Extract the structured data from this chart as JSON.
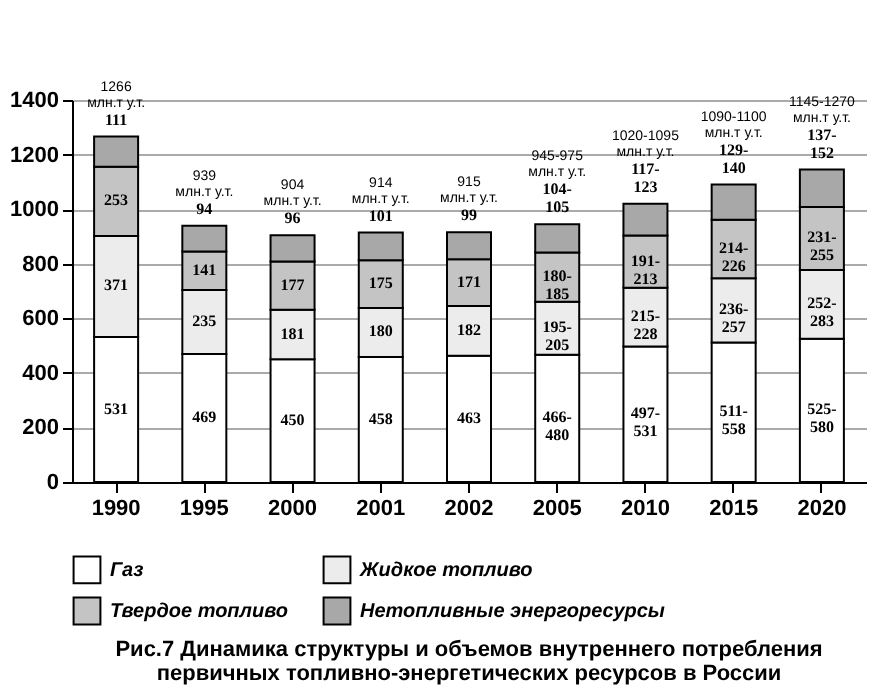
{
  "chart_data": {
    "type": "bar",
    "stacked": true,
    "title": "Рис.7 Динамика структуры и объемов внутреннего потребления первичных топливно-энергетических ресурсов в России",
    "categories": [
      "1990",
      "1995",
      "2000",
      "2001",
      "2002",
      "2005",
      "2010",
      "2015",
      "2020"
    ],
    "series": [
      {
        "name": "Газ",
        "color": "#ffffff",
        "values": [
          531,
          469,
          450,
          458,
          463,
          466,
          497,
          511,
          525
        ],
        "value_labels": [
          "531",
          "469",
          "450",
          "458",
          "463",
          "466-480",
          "497-531",
          "511-558",
          "525-580"
        ]
      },
      {
        "name": "Жидкое топливо",
        "color": "#ececec",
        "values": [
          371,
          235,
          181,
          180,
          182,
          195,
          215,
          236,
          252
        ],
        "value_labels": [
          "371",
          "235",
          "181",
          "180",
          "182",
          "195-205",
          "215-228",
          "236-257",
          "252-283"
        ]
      },
      {
        "name": "Твердое топливо",
        "color": "#c4c4c4",
        "values": [
          253,
          141,
          177,
          175,
          171,
          180,
          191,
          214,
          231
        ],
        "value_labels": [
          "253",
          "141",
          "177",
          "175",
          "171",
          "180-185",
          "191-213",
          "214-226",
          "231-255"
        ]
      },
      {
        "name": "Нетопливные энергоресурсы",
        "color": "#a8a8a8",
        "values": [
          111,
          94,
          96,
          101,
          99,
          104,
          117,
          129,
          137
        ],
        "value_labels": [
          "111",
          "94",
          "96",
          "101",
          "99",
          "104-105",
          "117-123",
          "129-140",
          "137-152"
        ]
      }
    ],
    "totals": [
      "1266 млн.т у.т.",
      "939 млн.т у.т.",
      "904 млн.т у.т.",
      "914 млн.т у.т.",
      "915 млн.т у.т.",
      "945-975 млн.т у.т.",
      "1020-1095 млн.т у.т.",
      "1090-1100 млн.т у.т.",
      "1145-1270 млн.т у.т."
    ],
    "ylim": [
      0,
      1400
    ],
    "yticks": [
      0,
      200,
      400,
      600,
      800,
      1000,
      1200,
      1400
    ],
    "grid": "y",
    "legend": "bottom"
  }
}
